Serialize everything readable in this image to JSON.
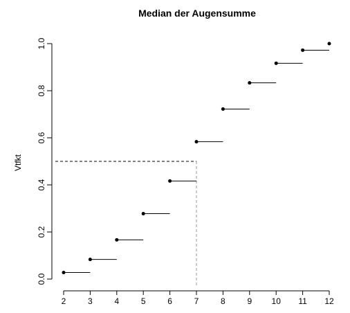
{
  "chart_data": {
    "type": "step",
    "title": "Median der Augensumme",
    "xlabel": "",
    "ylabel": "Vtfkt",
    "xlim": [
      2,
      12
    ],
    "ylim": [
      0,
      1
    ],
    "x_ticks": [
      2,
      3,
      4,
      5,
      6,
      7,
      8,
      9,
      10,
      11,
      12
    ],
    "y_ticks": [
      0.0,
      0.2,
      0.4,
      0.6,
      0.8,
      1.0
    ],
    "y_tick_labels": [
      "0.0",
      "0.2",
      "0.4",
      "0.6",
      "0.8",
      "1.0"
    ],
    "x": [
      2,
      3,
      4,
      5,
      6,
      7,
      8,
      9,
      10,
      11,
      12
    ],
    "values": [
      0.0278,
      0.0833,
      0.1667,
      0.2778,
      0.4167,
      0.5833,
      0.7222,
      0.8333,
      0.9167,
      0.9722,
      1.0
    ],
    "median_guide": {
      "x": 7,
      "y": 0.5
    },
    "grid": false,
    "colors": {
      "line": "#000000",
      "horizontal_guide": "#000000",
      "vertical_guide": "#999999"
    }
  }
}
